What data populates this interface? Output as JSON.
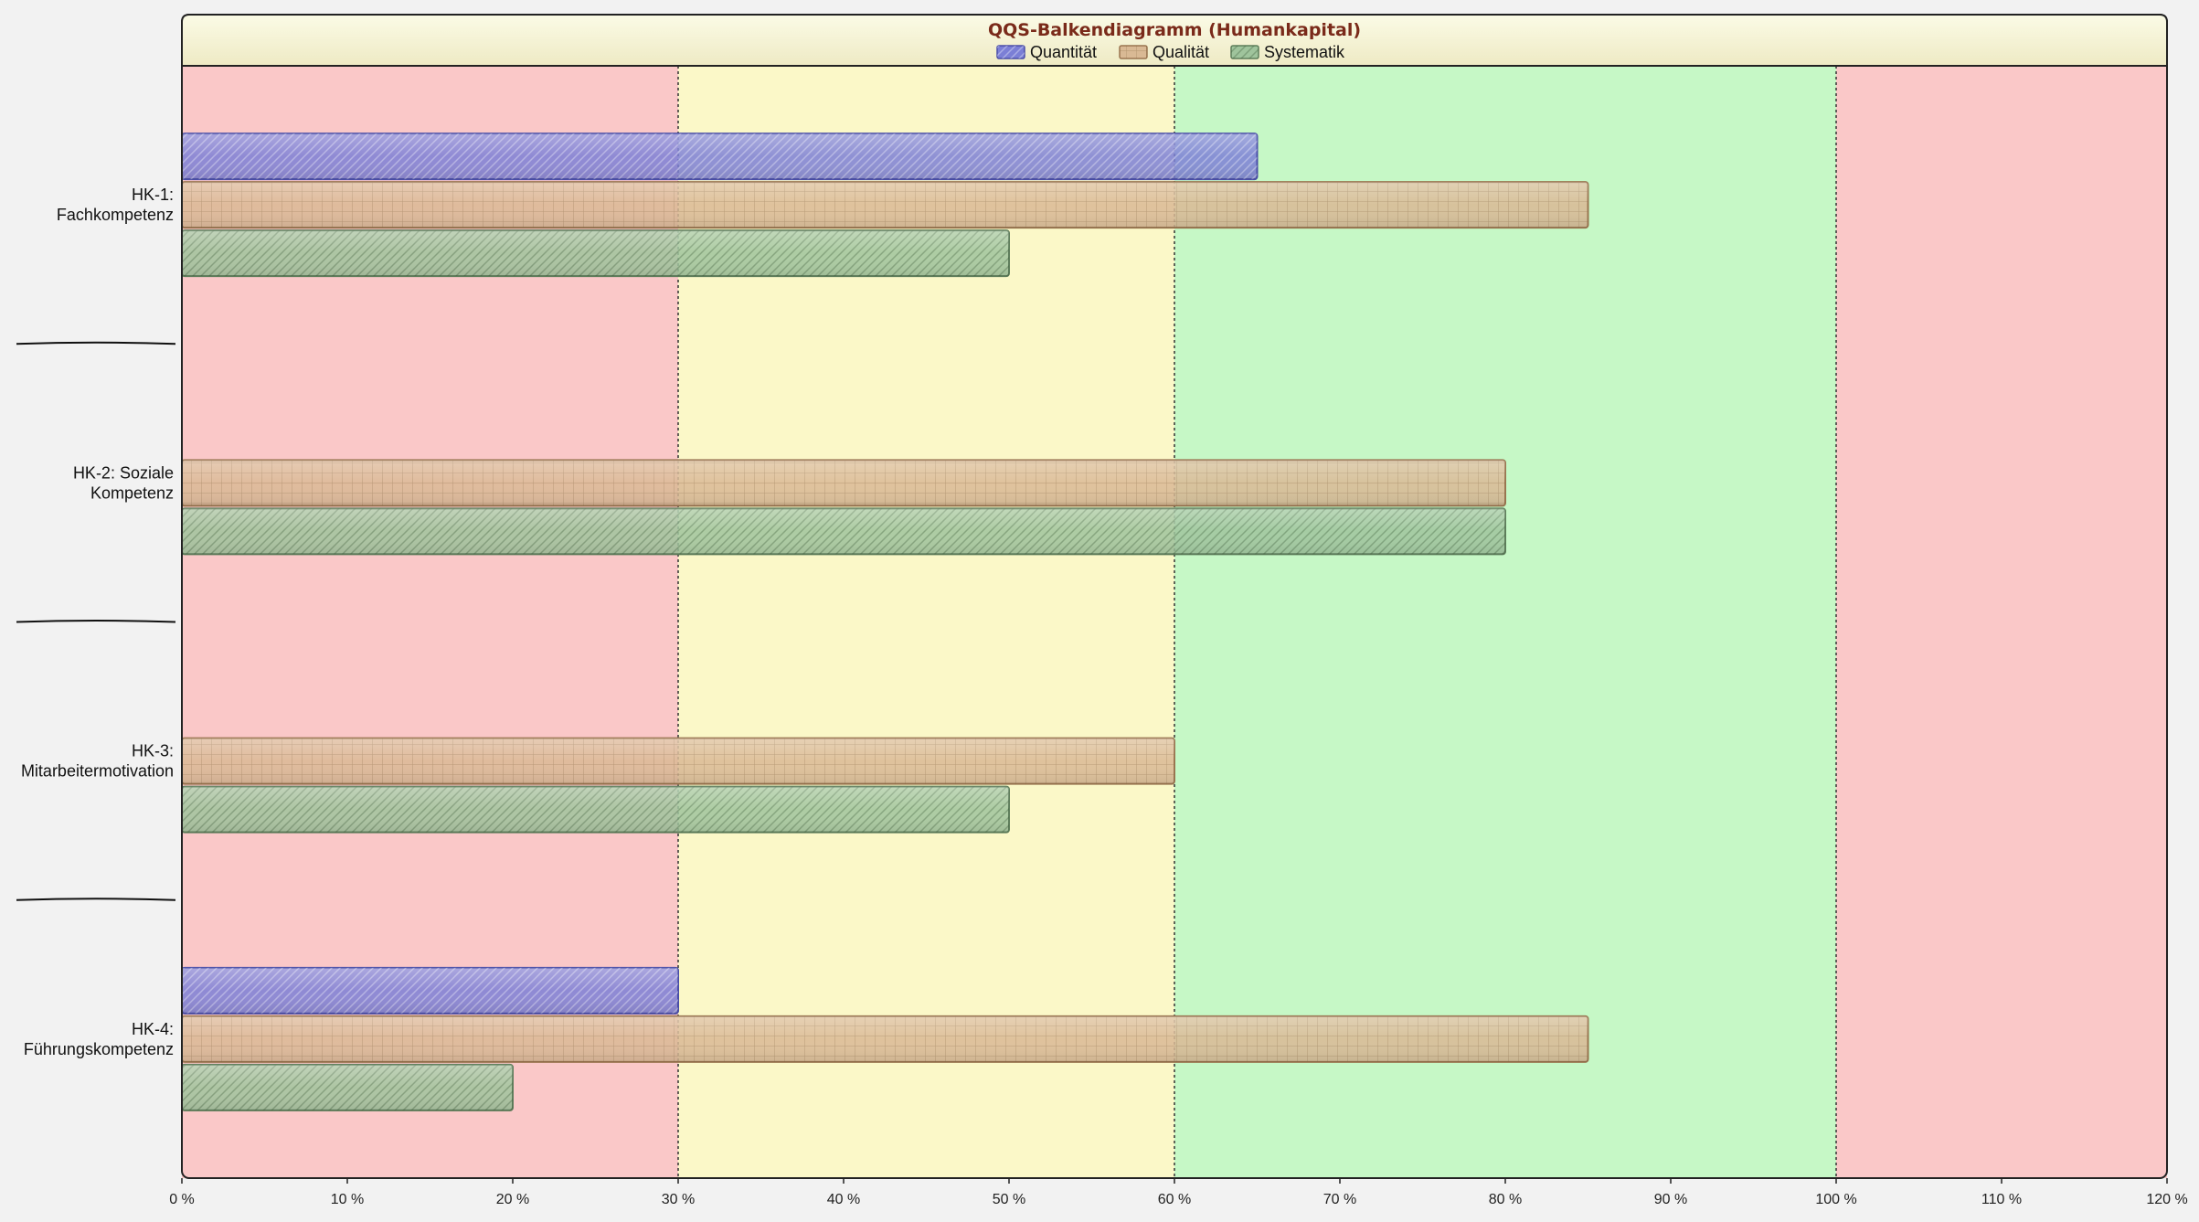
{
  "chart_data": {
    "type": "bar",
    "orientation": "horizontal",
    "title": "QQS-Balkendiagramm (Humankapital)",
    "legend_position": "top",
    "categories": [
      [
        "HK-1:",
        "Fachkompetenz"
      ],
      [
        "HK-2: Soziale",
        "Kompetenz"
      ],
      [
        "HK-3:",
        "Mitarbeitermotivation"
      ],
      [
        "HK-4:",
        "Führungskompetenz"
      ]
    ],
    "series": [
      {
        "name": "Quantität",
        "color": "#7b7fd6",
        "values": [
          65,
          null,
          null,
          30
        ]
      },
      {
        "name": "Qualität",
        "color": "#d9b994",
        "values": [
          85,
          80,
          60,
          85
        ]
      },
      {
        "name": "Systematik",
        "color": "#9fc49c",
        "values": [
          50,
          80,
          50,
          20
        ]
      }
    ],
    "xlim": [
      0,
      120
    ],
    "xticks": [
      "0 %",
      "10 %",
      "20 %",
      "30 %",
      "40 %",
      "50 %",
      "60 %",
      "70 %",
      "80 %",
      "90 %",
      "100 %",
      "110 %",
      "120 %"
    ],
    "zones": [
      {
        "from": 0,
        "to": 30,
        "color": "#fac8c8"
      },
      {
        "from": 30,
        "to": 60,
        "color": "#fbf8c8"
      },
      {
        "from": 60,
        "to": 100,
        "color": "#c6f8c6"
      },
      {
        "from": 100,
        "to": 120,
        "color": "#fac8c8"
      }
    ],
    "thresholds": [
      30,
      60,
      100
    ],
    "grid": false
  }
}
